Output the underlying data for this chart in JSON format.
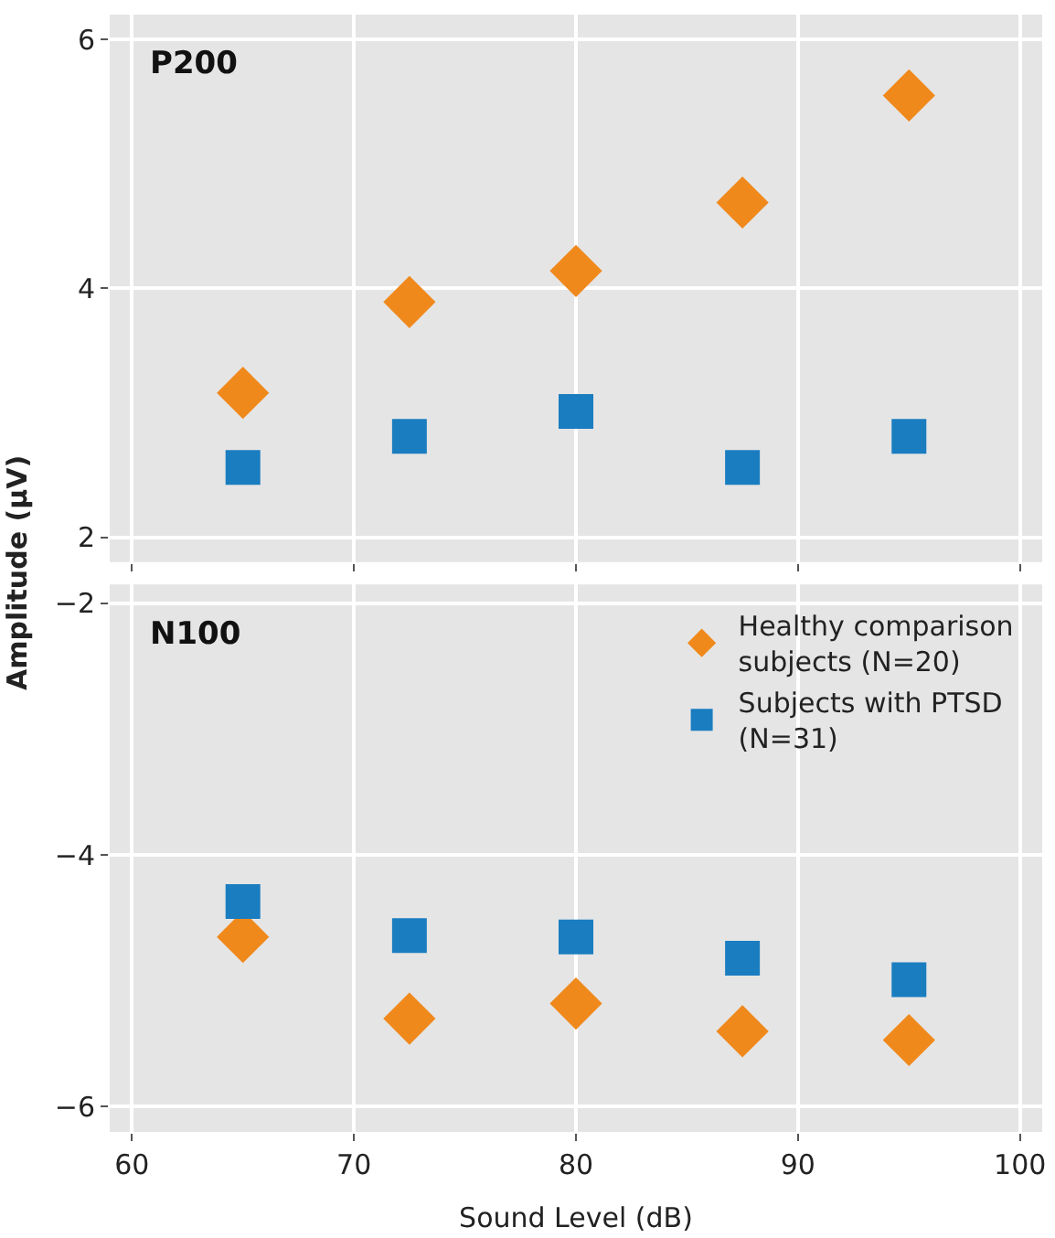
{
  "chart_data": [
    {
      "type": "scatter",
      "title": "P200",
      "ylabel": "Amplitude (μV)",
      "x": [
        65,
        72.5,
        80,
        87.5,
        95
      ],
      "xlim": [
        59,
        101
      ],
      "xticks": [
        60,
        70,
        80,
        90,
        100
      ],
      "ylim": [
        1.8,
        6.2
      ],
      "yticks": [
        2,
        4,
        6
      ],
      "grid": true,
      "legend": false,
      "tick_labels": "y",
      "series": [
        {
          "color": "#f0891c",
          "marker": "diamond",
          "values": [
            3.16,
            3.89,
            4.14,
            4.69,
            5.55
          ]
        },
        {
          "color": "#1a7dc0",
          "marker": "square",
          "values": [
            2.56,
            2.81,
            3.01,
            2.56,
            2.81
          ]
        }
      ]
    },
    {
      "type": "scatter",
      "title": "N100",
      "xlabel": "Sound Level (dB)",
      "x": [
        65,
        72.5,
        80,
        87.5,
        95
      ],
      "xlim": [
        59,
        101
      ],
      "xticks": [
        60,
        70,
        80,
        90,
        100
      ],
      "ylim": [
        -6.2,
        -1.85
      ],
      "yticks": [
        {
          "value": -6,
          "label": "−6"
        },
        {
          "value": -4,
          "label": "−4"
        },
        {
          "value": -2,
          "label": "−2"
        }
      ],
      "grid": true,
      "legend": "top right",
      "series": [
        {
          "name": "Healthy comparison subjects (N=20)",
          "color": "#f0891c",
          "marker": "diamond",
          "values": [
            -4.65,
            -5.3,
            -5.18,
            -5.4,
            -5.47
          ]
        },
        {
          "name": "Subjects with PTSD (N=31)",
          "color": "#1a7dc0",
          "marker": "square",
          "values": [
            -4.37,
            -4.64,
            -4.65,
            -4.82,
            -4.99
          ]
        }
      ]
    }
  ]
}
